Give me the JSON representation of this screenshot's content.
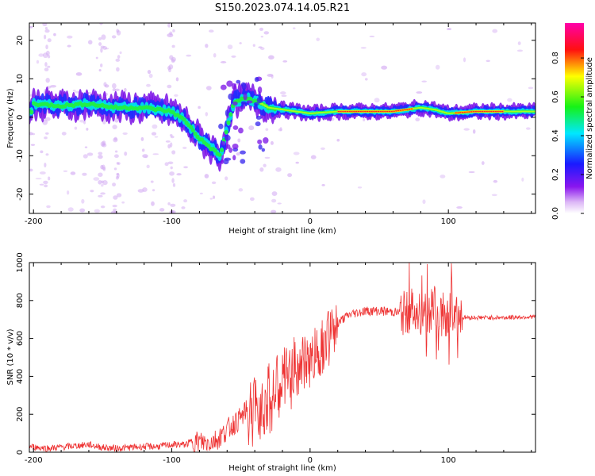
{
  "title": "S150.2023.074.14.05.R21",
  "colors": {
    "snr_line": "#ee3333",
    "frame": "#000000",
    "background": "#ffffff"
  },
  "chart_data": [
    {
      "type": "heatmap",
      "xlabel": "Height of straight line (km)",
      "ylabel": "Frequency (Hz)",
      "xlim": [
        -203,
        163
      ],
      "ylim": [
        -25,
        24.5
      ],
      "xticks": [
        -200,
        -100,
        0,
        100
      ],
      "yticks": [
        -20,
        -10,
        0,
        10,
        20
      ],
      "colorbar": {
        "label": "Normalized spectral amplitude",
        "range": [
          0,
          0.98
        ],
        "ticks": [
          "0.0",
          "0.2",
          "0.4",
          "0.6",
          "0.8"
        ],
        "tick_values": [
          0.0,
          0.2,
          0.4,
          0.6,
          0.8
        ],
        "colormap": "rainbow (white-purple-blue-cyan-green-yellow-red-magenta)"
      },
      "ridge": {
        "description": "dominant spectral line frequency vs height",
        "x": [
          -200,
          -180,
          -160,
          -140,
          -120,
          -100,
          -90,
          -80,
          -70,
          -65,
          -55,
          -45,
          -35,
          -30,
          -20,
          -10,
          0,
          20,
          40,
          60,
          80,
          90,
          100,
          120,
          140,
          160
        ],
        "y": [
          3.5,
          3,
          3.5,
          2.5,
          2.5,
          1.5,
          -1,
          -5.5,
          -8.5,
          -10,
          4,
          5,
          3.5,
          2.5,
          2,
          1.5,
          1,
          1.5,
          1.5,
          1.5,
          2.5,
          2,
          1,
          1.5,
          1.5,
          1.5
        ]
      }
    },
    {
      "type": "line",
      "xlabel": "Height of straight line (km)",
      "ylabel": "SNR (10 * v/v)",
      "xlim": [
        -203,
        163
      ],
      "ylim": [
        0,
        1000
      ],
      "xticks": [
        -200,
        -100,
        0,
        100
      ],
      "yticks": [
        0,
        200,
        400,
        600,
        800,
        1000
      ],
      "series": [
        {
          "x": [
            -203,
            -190,
            -175,
            -160,
            -150,
            -140,
            -130,
            -120,
            -110,
            -100,
            -90,
            -85,
            -80,
            -75,
            -70,
            -65,
            -60,
            -55,
            -50,
            -45,
            -40,
            -35,
            -30,
            -25,
            -20,
            -15,
            -10,
            -5,
            0,
            5,
            10,
            15,
            20,
            25,
            30,
            40,
            50,
            60,
            70,
            75,
            80,
            85,
            90,
            95,
            100,
            105,
            110,
            120,
            140,
            163
          ],
          "y": [
            30,
            20,
            30,
            40,
            25,
            20,
            25,
            30,
            30,
            40,
            40,
            60,
            55,
            50,
            60,
            80,
            120,
            150,
            180,
            230,
            260,
            300,
            320,
            350,
            400,
            440,
            470,
            490,
            520,
            560,
            600,
            640,
            680,
            710,
            730,
            745,
            745,
            740,
            730,
            750,
            740,
            720,
            760,
            720,
            730,
            740,
            710,
            710,
            710,
            715
          ]
        }
      ]
    }
  ]
}
